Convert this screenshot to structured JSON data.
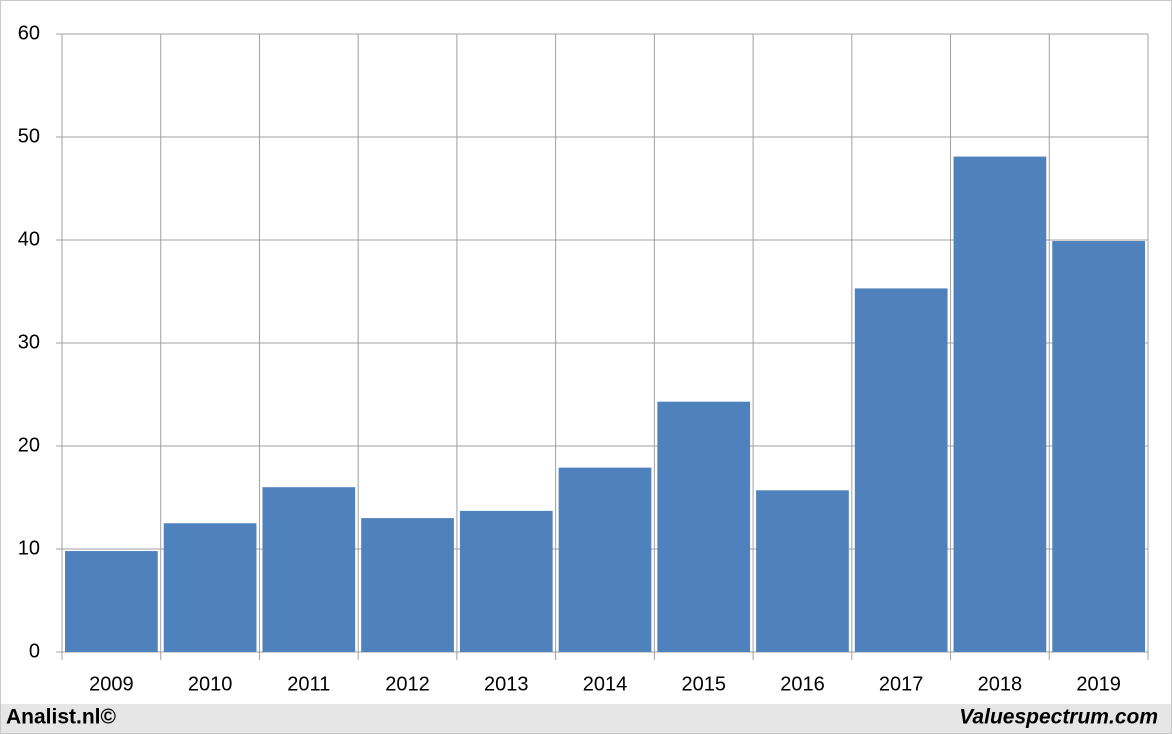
{
  "chart_data": {
    "type": "bar",
    "categories": [
      "2009",
      "2010",
      "2011",
      "2012",
      "2013",
      "2014",
      "2015",
      "2016",
      "2017",
      "2018",
      "2019"
    ],
    "values": [
      9.8,
      12.5,
      16.0,
      13.0,
      13.7,
      17.9,
      24.3,
      15.7,
      35.3,
      48.1,
      39.9
    ],
    "color": "#4f81bd",
    "ylim": [
      0,
      60
    ],
    "yticks": [
      0,
      10,
      20,
      30,
      40,
      50,
      60
    ],
    "grid": true,
    "annotations": [
      "Analist.nl©",
      "Valuespectrum.com"
    ]
  }
}
